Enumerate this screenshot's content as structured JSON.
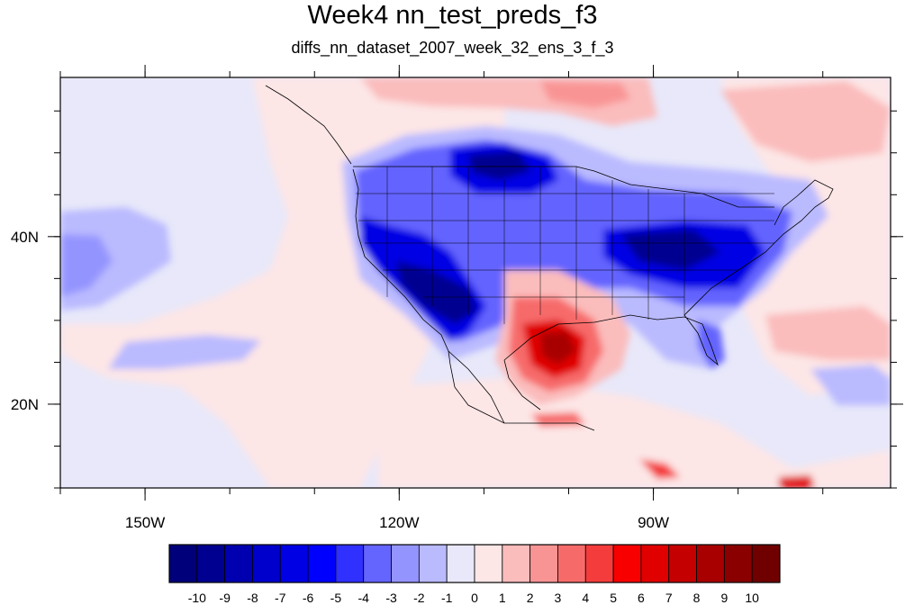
{
  "title": "Week4 nn_test_preds_f3",
  "subtitle": "diffs_nn_dataset_2007_week_32_ens_3_f_3",
  "map": {
    "lon_range": [
      -160,
      -62
    ],
    "lat_range": [
      10,
      59
    ],
    "x_ticks": [
      {
        "lon": -150,
        "label": "150W"
      },
      {
        "lon": -120,
        "label": "120W"
      },
      {
        "lon": -90,
        "label": "90W"
      }
    ],
    "y_ticks": [
      {
        "lat": 20,
        "label": "20N"
      },
      {
        "lat": 40,
        "label": "40N"
      }
    ],
    "minor_x_step": 10,
    "minor_y_step": 5
  },
  "colorbar": {
    "labels": [
      "-10",
      "-9",
      "-8",
      "-7",
      "-6",
      "-5",
      "-4",
      "-3",
      "-2",
      "-1",
      "0",
      "1",
      "2",
      "3",
      "4",
      "5",
      "6",
      "7",
      "8",
      "9",
      "10"
    ],
    "colors": [
      "#00007a",
      "#000090",
      "#0000b0",
      "#0000cc",
      "#0000e4",
      "#0000ff",
      "#3030ff",
      "#6464ff",
      "#9494ff",
      "#babaff",
      "#e8e8fa",
      "#fde6e6",
      "#fbbcbc",
      "#f99494",
      "#f76a6a",
      "#f43c3c",
      "#f80000",
      "#e00000",
      "#c40000",
      "#a80000",
      "#8a0000",
      "#700000"
    ]
  },
  "palette": {
    "neg_faint": "#e8e8fa",
    "pos_faint": "#fde6e6",
    "neg_light": "#babaff",
    "pos_light": "#fbbcbc"
  }
}
